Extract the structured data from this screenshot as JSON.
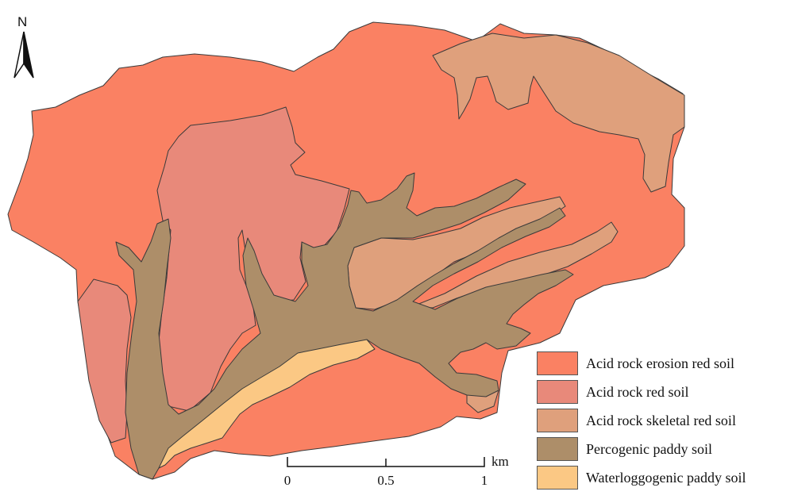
{
  "legend": {
    "items": [
      {
        "label": "Acid rock erosion red soil",
        "color": "#FA8163"
      },
      {
        "label": "Acid rock red soil",
        "color": "#E8897A"
      },
      {
        "label": "Acid rock skeletal red soil",
        "color": "#DFA07C"
      },
      {
        "label": "Percogenic paddy soil",
        "color": "#AD8E69"
      },
      {
        "label": "Waterloggogenic paddy soil",
        "color": "#FBC884"
      }
    ]
  },
  "north_arrow": {
    "label": "N"
  },
  "scale_bar": {
    "unit": "km",
    "ticks": [
      "0",
      "0.5",
      "1"
    ]
  }
}
